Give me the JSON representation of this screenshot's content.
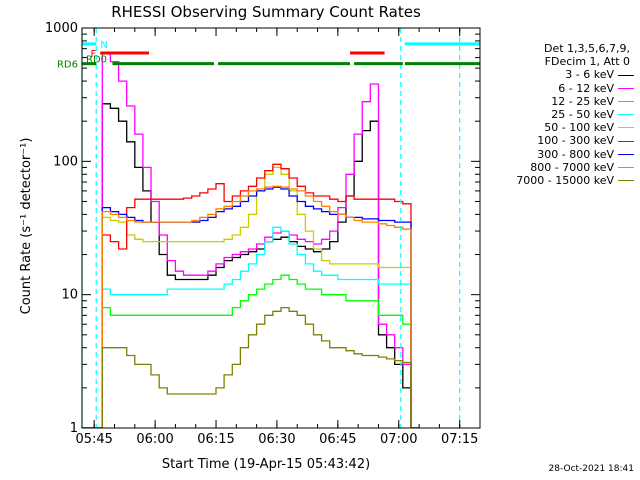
{
  "chart_data": {
    "type": "line",
    "title": "RHESSI Observing Summary Count Rates",
    "xlabel": "Start Time (19-Apr-15 05:43:42)",
    "ylabel": "Count Rate (s⁻¹ detector⁻¹)",
    "y_scale": "log",
    "ylim": [
      1,
      1000
    ],
    "xlim_minutes": [
      -3,
      95
    ],
    "x_tick_labels": [
      "05:45",
      "06:00",
      "06:15",
      "06:30",
      "06:45",
      "07:00",
      "07:15"
    ],
    "x_ticks_minutes": [
      0,
      15,
      30,
      45,
      60,
      75,
      90
    ],
    "y_tick_labels": [
      "1",
      "10",
      "100",
      "1000"
    ],
    "y_ticks": [
      1,
      10,
      100,
      1000
    ],
    "grid": false,
    "legend_position": "right",
    "legend_header": [
      "Det 1,3,5,6,7,9,",
      "FDecim 1, Att 0"
    ],
    "timestamp": "28-Oct-2021 18:41",
    "annotations": [
      {
        "label": "N",
        "color": "#00ffff",
        "segments": [
          [
            -15,
            0.5
          ],
          [
            76.5,
            95
          ]
        ],
        "y": 760
      },
      {
        "label": "F",
        "color": "#ff0000",
        "segments": [
          [
            1.5,
            13.5
          ],
          [
            63,
            71.5
          ]
        ],
        "y": 650
      },
      {
        "label": "RD0",
        "color": "#008000",
        "segments": [
          [
            -15,
            -3
          ]
        ],
        "y": 590
      },
      {
        "label": "RD6",
        "color": "#008000",
        "segments": [
          [
            -15,
            0.5
          ],
          [
            4.5,
            29.5
          ],
          [
            30.5,
            63
          ],
          [
            64,
            76
          ],
          [
            76.5,
            95
          ]
        ],
        "y": 540
      }
    ],
    "vertical_lines": [
      {
        "x": 0.5,
        "color": "#00ffff",
        "style": "dashed"
      },
      {
        "x": 75.5,
        "color": "#00ffff",
        "style": "dashed"
      },
      {
        "x": 90,
        "color": "#00ffff",
        "style": "dashed"
      },
      {
        "x": -15,
        "color": "#00ffff",
        "style": "solid"
      }
    ],
    "x_minutes": [
      -3,
      0,
      2,
      4,
      6,
      8,
      10,
      12,
      14,
      16,
      18,
      20,
      22,
      24,
      26,
      28,
      30,
      32,
      34,
      36,
      38,
      40,
      42,
      44,
      46,
      48,
      50,
      52,
      54,
      56,
      58,
      60,
      62,
      64,
      66,
      68,
      70,
      72,
      74,
      76,
      78,
      80
    ],
    "series": [
      {
        "name": "3 - 6 keV",
        "color": "#000000",
        "values": [
          1,
          1,
          270,
          250,
          200,
          140,
          90,
          60,
          35,
          20,
          14,
          13,
          13,
          13,
          13,
          14,
          16,
          18,
          19,
          20,
          21,
          22,
          25,
          26,
          27,
          25,
          23,
          22,
          21,
          22,
          25,
          35,
          55,
          100,
          170,
          200,
          5,
          4,
          3,
          2,
          1,
          1
        ]
      },
      {
        "name": "6 - 12 keV",
        "color": "#ff00ff",
        "values": [
          1,
          1,
          640,
          560,
          400,
          260,
          160,
          90,
          50,
          28,
          18,
          15,
          14,
          14,
          14,
          15,
          17,
          19,
          20,
          21,
          22,
          24,
          27,
          29,
          30,
          28,
          26,
          25,
          24,
          26,
          30,
          45,
          80,
          160,
          280,
          380,
          6,
          5,
          4,
          3,
          1,
          1
        ]
      },
      {
        "name": "12 - 25 keV",
        "color": "#00ff00",
        "values": [
          1,
          1,
          8,
          7,
          7,
          7,
          7,
          7,
          7,
          7,
          7,
          7,
          7,
          7,
          7,
          7,
          7,
          7,
          8,
          9,
          10,
          11,
          12,
          13,
          14,
          13,
          12,
          11,
          11,
          10,
          10,
          10,
          9,
          9,
          9,
          9,
          7,
          7,
          7,
          6,
          1,
          1
        ]
      },
      {
        "name": "25 - 50 keV",
        "color": "#00ffff",
        "values": [
          1,
          1,
          11,
          10,
          10,
          10,
          10,
          10,
          10,
          10,
          11,
          11,
          11,
          11,
          11,
          11,
          11,
          12,
          13,
          15,
          17,
          20,
          25,
          32,
          30,
          24,
          20,
          17,
          15,
          14,
          14,
          13,
          13,
          13,
          13,
          13,
          12,
          12,
          12,
          12,
          1,
          1
        ]
      },
      {
        "name": "50 - 100 keV",
        "color": "#cccc00",
        "values": [
          1,
          1,
          38,
          36,
          35,
          28,
          26,
          25,
          25,
          25,
          25,
          25,
          25,
          25,
          25,
          25,
          25,
          26,
          28,
          32,
          40,
          60,
          80,
          90,
          80,
          60,
          40,
          30,
          22,
          18,
          17,
          17,
          17,
          17,
          17,
          17,
          16,
          16,
          16,
          16,
          1,
          1
        ]
      },
      {
        "name": "100 - 300 keV",
        "color": "#ff0000",
        "values": [
          1,
          1,
          28,
          25,
          22,
          45,
          52,
          52,
          52,
          52,
          52,
          52,
          53,
          55,
          58,
          62,
          68,
          50,
          55,
          60,
          65,
          75,
          85,
          95,
          88,
          75,
          65,
          58,
          55,
          55,
          52,
          50,
          55,
          52,
          52,
          52,
          52,
          52,
          50,
          48,
          1,
          1
        ]
      },
      {
        "name": "300 - 800 keV",
        "color": "#0000ff",
        "values": [
          1,
          1,
          45,
          42,
          40,
          38,
          36,
          35,
          35,
          35,
          35,
          35,
          35,
          35,
          36,
          38,
          42,
          44,
          46,
          50,
          55,
          60,
          62,
          64,
          62,
          55,
          50,
          46,
          44,
          42,
          40,
          40,
          38,
          38,
          37,
          37,
          36,
          36,
          35,
          35,
          1,
          1
        ]
      },
      {
        "name": "800 - 7000 keV",
        "color": "#ff8000",
        "values": [
          1,
          1,
          42,
          40,
          38,
          36,
          35,
          35,
          35,
          35,
          35,
          35,
          35,
          36,
          38,
          40,
          44,
          46,
          50,
          55,
          60,
          62,
          64,
          65,
          64,
          62,
          60,
          55,
          50,
          46,
          42,
          40,
          38,
          36,
          35,
          35,
          34,
          33,
          32,
          31,
          1,
          1
        ]
      },
      {
        "name": "7000 - 15000 keV",
        "color": "#808000",
        "values": [
          1,
          1,
          4,
          4,
          4,
          3.5,
          3,
          3,
          2.5,
          2,
          1.8,
          1.8,
          1.8,
          1.8,
          1.8,
          1.8,
          2,
          2.5,
          3,
          4,
          5,
          6,
          7,
          7.5,
          8,
          7.5,
          7,
          6,
          5,
          4.5,
          4,
          4,
          3.8,
          3.6,
          3.5,
          3.5,
          3.4,
          3.3,
          3.2,
          3.1,
          1,
          1
        ]
      }
    ]
  }
}
